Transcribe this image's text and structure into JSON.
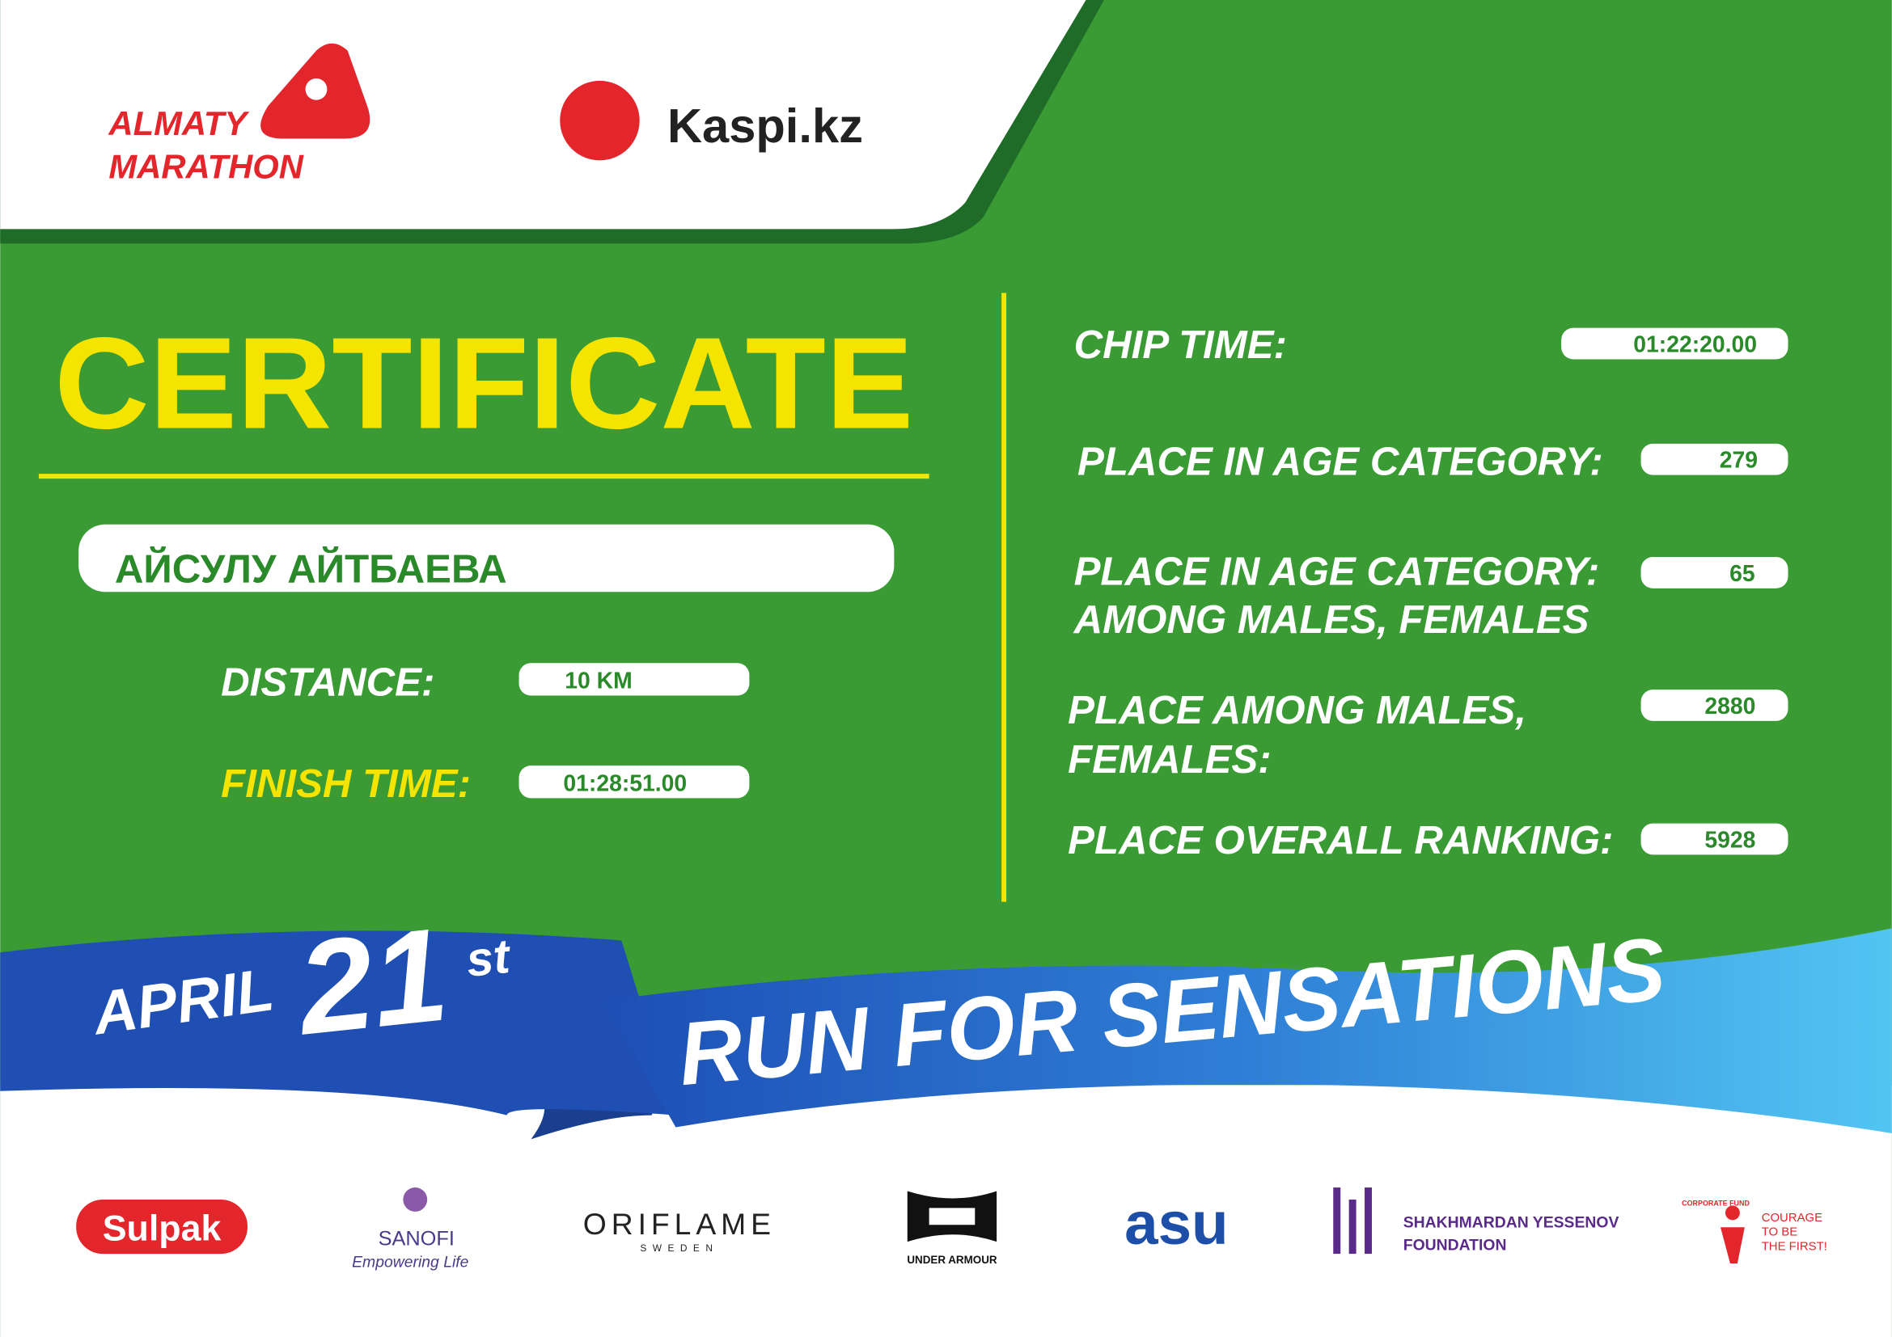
{
  "header": {
    "event_logo": [
      "ALMATY",
      "MARATHON"
    ],
    "sponsor_logo": "Kaspi.kz"
  },
  "certificate": {
    "title": "CERTIFICATE",
    "participant": "АЙСУЛУ АЙТБАЕВА",
    "fields": [
      {
        "label": [
          "DISTANCE:"
        ],
        "value": "10 KM"
      },
      {
        "label": [
          "FINISH TIME:"
        ],
        "value": "01:28:51.00"
      }
    ]
  },
  "results": [
    {
      "label": [
        "CHIP TIME:"
      ],
      "value": "01:22:20.00"
    },
    {
      "label": [
        "PLACE IN AGE CATEGORY:"
      ],
      "value": "279"
    },
    {
      "label": [
        "PLACE IN AGE CATEGORY:",
        "AMONG MALES, FEMALES"
      ],
      "value": "65"
    },
    {
      "label": [
        "PLACE AMONG MALES,",
        "FEMALES:"
      ],
      "value": "2880"
    },
    {
      "label": [
        "PLACE OVERALL RANKING:"
      ],
      "value": "5928"
    }
  ],
  "banner": {
    "month": "APRIL",
    "day": "21",
    "suffix": "st",
    "slogan": "RUN FOR SENSATIONS"
  },
  "sponsors": [
    {
      "texts": [
        "Sulpak"
      ]
    },
    {
      "texts": [
        "SANOFI",
        "Empowering Life"
      ]
    },
    {
      "texts": [
        "ORIFLAME",
        "SWEDEN"
      ]
    },
    {
      "texts": [
        "UNDER ARMOUR"
      ]
    },
    {
      "texts": [
        "asu"
      ]
    },
    {
      "texts": [
        "SHAKHMARDAN YESSENOV",
        "FOUNDATION"
      ]
    },
    {
      "texts": [
        "CORPORATE FUND",
        "COURAGE",
        "TO BE",
        "THE FIRST!"
      ]
    }
  ]
}
